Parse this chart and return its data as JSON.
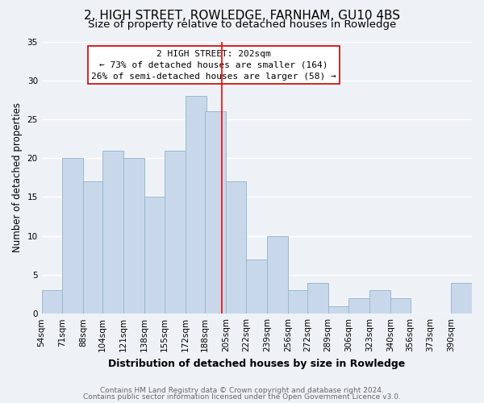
{
  "title": "2, HIGH STREET, ROWLEDGE, FARNHAM, GU10 4BS",
  "subtitle": "Size of property relative to detached houses in Rowledge",
  "xlabel": "Distribution of detached houses by size in Rowledge",
  "ylabel": "Number of detached properties",
  "bar_color": "#c8d8ea",
  "bar_edgecolor": "#9ab8ce",
  "reference_line_x": 202,
  "reference_line_color": "red",
  "categories": [
    "54sqm",
    "71sqm",
    "88sqm",
    "104sqm",
    "121sqm",
    "138sqm",
    "155sqm",
    "172sqm",
    "188sqm",
    "205sqm",
    "222sqm",
    "239sqm",
    "256sqm",
    "272sqm",
    "289sqm",
    "306sqm",
    "323sqm",
    "340sqm",
    "356sqm",
    "373sqm",
    "390sqm"
  ],
  "bin_starts": [
    54,
    71,
    88,
    104,
    121,
    138,
    155,
    172,
    188,
    205,
    222,
    239,
    256,
    272,
    289,
    306,
    323,
    340,
    356,
    373,
    390
  ],
  "bin_width": 17,
  "values": [
    3,
    20,
    17,
    21,
    20,
    15,
    21,
    28,
    26,
    17,
    7,
    10,
    3,
    4,
    1,
    2,
    3,
    2,
    0,
    0,
    4
  ],
  "ylim": [
    0,
    35
  ],
  "yticks": [
    0,
    5,
    10,
    15,
    20,
    25,
    30,
    35
  ],
  "annotation_title": "2 HIGH STREET: 202sqm",
  "annotation_line1": "← 73% of detached houses are smaller (164)",
  "annotation_line2": "26% of semi-detached houses are larger (58) →",
  "footer1": "Contains HM Land Registry data © Crown copyright and database right 2024.",
  "footer2": "Contains public sector information licensed under the Open Government Licence v3.0.",
  "background_color": "#eef2f7",
  "grid_color": "white",
  "title_fontsize": 11,
  "subtitle_fontsize": 9.5,
  "xlabel_fontsize": 9,
  "ylabel_fontsize": 8.5,
  "tick_fontsize": 7.5,
  "annotation_fontsize": 8,
  "footer_fontsize": 6.5
}
